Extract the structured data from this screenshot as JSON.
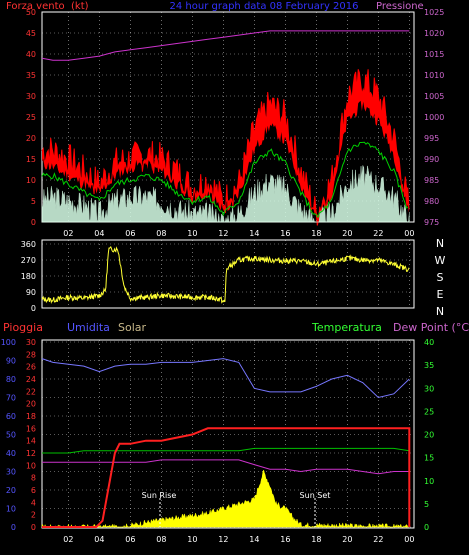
{
  "colors": {
    "background": "#000000",
    "axis": "#ffffff",
    "grid": "#ffffff",
    "wind_avg": "#ff0000",
    "wind_gust_band": "#ff0000",
    "wind_mean": "#00d000",
    "wind_low": "#d8ffe8",
    "pressure": "#cc33cc",
    "direction": "#ffff33",
    "rain": "#ff2020",
    "humidity": "#7777ff",
    "solar": "#ffff00",
    "temperature": "#00c000",
    "dewpoint": "#cc33cc",
    "label_red": "#ff3333",
    "label_blue": "#5555ff",
    "label_solar": "#c8b88a",
    "label_green": "#33ff33",
    "label_magenta": "#cc66cc",
    "label_white": "#ffffff"
  },
  "texts": {
    "top_left": "Forza vento",
    "top_unit": "(kt)",
    "top_title": "24 hour graph data 08 February 2016",
    "top_right": "Pressione",
    "dir_compass": [
      "N",
      "W",
      "S",
      "E",
      "N"
    ],
    "bot_pioggia": "Pioggia",
    "bot_umidita": "Umidita",
    "bot_solar": "Solar",
    "bot_temperatura": "Temperatura",
    "bot_dewpoint": "Dew Point (°C)",
    "sun_rise": "Sun Rise",
    "sun_set": "Sun Set"
  },
  "chart_data": [
    {
      "type": "line",
      "name": "wind",
      "x_ticks": [
        "02",
        "04",
        "06",
        "08",
        "10",
        "12",
        "14",
        "16",
        "18",
        "20",
        "22",
        "00"
      ],
      "x_hours": [
        2,
        4,
        6,
        8,
        10,
        12,
        14,
        16,
        18,
        20,
        22,
        24
      ],
      "xlim": [
        0.3,
        24.3
      ],
      "left_axis": {
        "ylim": [
          0,
          50
        ],
        "ticks": [
          0,
          5,
          10,
          15,
          20,
          25,
          30,
          35,
          40,
          45,
          50
        ]
      },
      "right_axis": {
        "ylim": [
          975,
          1025
        ],
        "ticks": [
          975,
          980,
          985,
          990,
          995,
          1000,
          1005,
          1010,
          1015,
          1020,
          1025
        ]
      },
      "x": [
        0.3,
        1,
        2,
        3,
        4,
        5,
        6,
        7,
        8,
        9,
        10,
        11,
        12,
        13,
        14,
        15,
        16,
        17,
        18,
        19,
        20,
        21,
        22,
        23,
        24
      ],
      "series": [
        {
          "role": "gust",
          "values": [
            17,
            17,
            15,
            12,
            9,
            14,
            15,
            16,
            15,
            12,
            8,
            10,
            5,
            9,
            22,
            28,
            25,
            12,
            2,
            10,
            30,
            34,
            30,
            20,
            3
          ]
        },
        {
          "role": "average",
          "values": [
            14,
            13,
            11,
            9,
            7,
            11,
            13,
            14,
            12,
            9,
            6,
            7,
            3,
            7,
            17,
            23,
            19,
            9,
            1,
            7,
            24,
            28,
            24,
            16,
            2
          ]
        },
        {
          "role": "mean",
          "values": [
            11,
            11,
            9,
            7,
            5,
            9,
            10,
            11,
            10,
            7,
            5,
            6,
            2,
            5,
            14,
            17,
            14,
            7,
            1,
            5,
            17,
            19,
            17,
            12,
            2
          ]
        },
        {
          "role": "low",
          "values": [
            5,
            6,
            5,
            4,
            2,
            5,
            6,
            6,
            5,
            3,
            2,
            2,
            0,
            2,
            7,
            10,
            8,
            3,
            0,
            2,
            9,
            11,
            9,
            6,
            0
          ]
        },
        {
          "role": "pressione",
          "axis": "right",
          "values": [
            1014,
            1013.5,
            1013.5,
            1014,
            1014.5,
            1015.5,
            1016,
            1016.5,
            1017,
            1017.5,
            1018,
            1018.5,
            1019,
            1019.5,
            1020,
            1020.5,
            1020.5,
            1020.5,
            1020.5,
            1020.5,
            1020.5,
            1020.5,
            1020.5,
            1020.5,
            1020.5
          ]
        }
      ]
    },
    {
      "type": "line",
      "name": "direction",
      "xlim": [
        0.3,
        24.3
      ],
      "ylim": [
        0,
        360
      ],
      "ticks": [
        0,
        90,
        180,
        270,
        360
      ],
      "x": [
        0.3,
        1,
        2,
        3,
        4,
        4.4,
        4.6,
        5.2,
        5.6,
        6,
        7,
        8,
        9,
        10,
        11,
        11.8,
        12.1,
        12.2,
        13,
        14,
        15,
        16,
        17,
        18,
        19,
        20,
        21,
        22,
        23,
        24
      ],
      "values": [
        50,
        45,
        60,
        55,
        70,
        100,
        330,
        330,
        120,
        55,
        60,
        70,
        65,
        60,
        60,
        50,
        30,
        220,
        270,
        280,
        270,
        265,
        265,
        245,
        260,
        280,
        270,
        270,
        245,
        215
      ]
    },
    {
      "type": "line",
      "name": "weather",
      "x_ticks": [
        "02",
        "04",
        "06",
        "08",
        "10",
        "12",
        "14",
        "16",
        "18",
        "20",
        "22",
        "00"
      ],
      "xlim": [
        0.3,
        24.3
      ],
      "left_axis_humidity": {
        "ylim": [
          0,
          100
        ],
        "ticks": [
          0,
          10,
          20,
          30,
          40,
          50,
          60,
          70,
          80,
          90,
          100
        ]
      },
      "left_axis_rain": {
        "ylim": [
          0,
          30
        ],
        "ticks": [
          0,
          2,
          4,
          6,
          8,
          10,
          12,
          14,
          16,
          18,
          20,
          22,
          24,
          26,
          28,
          30
        ]
      },
      "right_axis_temp": {
        "ylim": [
          0,
          40
        ],
        "ticks": [
          0,
          5,
          10,
          15,
          20,
          25,
          30,
          35,
          40
        ]
      },
      "x": [
        0.3,
        1,
        2,
        3,
        4,
        5,
        6,
        7,
        8,
        9,
        10,
        11,
        12,
        13,
        14,
        15,
        16,
        17,
        18,
        19,
        20,
        21,
        22,
        23,
        24
      ],
      "series": [
        {
          "name": "Umidita",
          "values": [
            91,
            89,
            88,
            87,
            84,
            87,
            88,
            88,
            89,
            89,
            89,
            90,
            91,
            89,
            75,
            73,
            73,
            73,
            76,
            80,
            82,
            78,
            70,
            72,
            80
          ]
        },
        {
          "name": "Temperatura",
          "values": [
            16,
            16,
            16,
            16.5,
            16.5,
            16.5,
            16.5,
            16.5,
            16.5,
            16.5,
            16.5,
            16.5,
            16.5,
            16.5,
            17,
            17,
            17,
            17,
            17,
            17,
            17,
            17,
            17,
            17,
            16.5
          ]
        },
        {
          "name": "Dew Point",
          "values": [
            14,
            14,
            14,
            14,
            14,
            14,
            14,
            14,
            14.5,
            14.5,
            14.5,
            14.5,
            14.5,
            14.5,
            13.5,
            12.5,
            12.5,
            12,
            12.5,
            12.5,
            12.5,
            12,
            11.5,
            12,
            12
          ]
        },
        {
          "name": "Pioggia",
          "x": [
            0.3,
            3.8,
            4.2,
            5,
            5.3,
            6,
            7,
            8,
            9,
            10,
            11,
            12,
            24,
            24
          ],
          "values": [
            0,
            0,
            1,
            12,
            13.5,
            13.5,
            14,
            14,
            14.5,
            15,
            16,
            16,
            16,
            0
          ]
        },
        {
          "name": "Solar",
          "x": [
            0.3,
            5.5,
            6,
            7,
            8,
            9,
            10,
            11,
            12,
            13,
            14,
            14.6,
            15,
            15.4,
            16,
            16.5,
            17,
            24
          ],
          "values": [
            0,
            0,
            0.3,
            1,
            1.5,
            2,
            2.5,
            3,
            4,
            5,
            6,
            12,
            9,
            5,
            4,
            2,
            0.5,
            0
          ]
        }
      ]
    }
  ]
}
